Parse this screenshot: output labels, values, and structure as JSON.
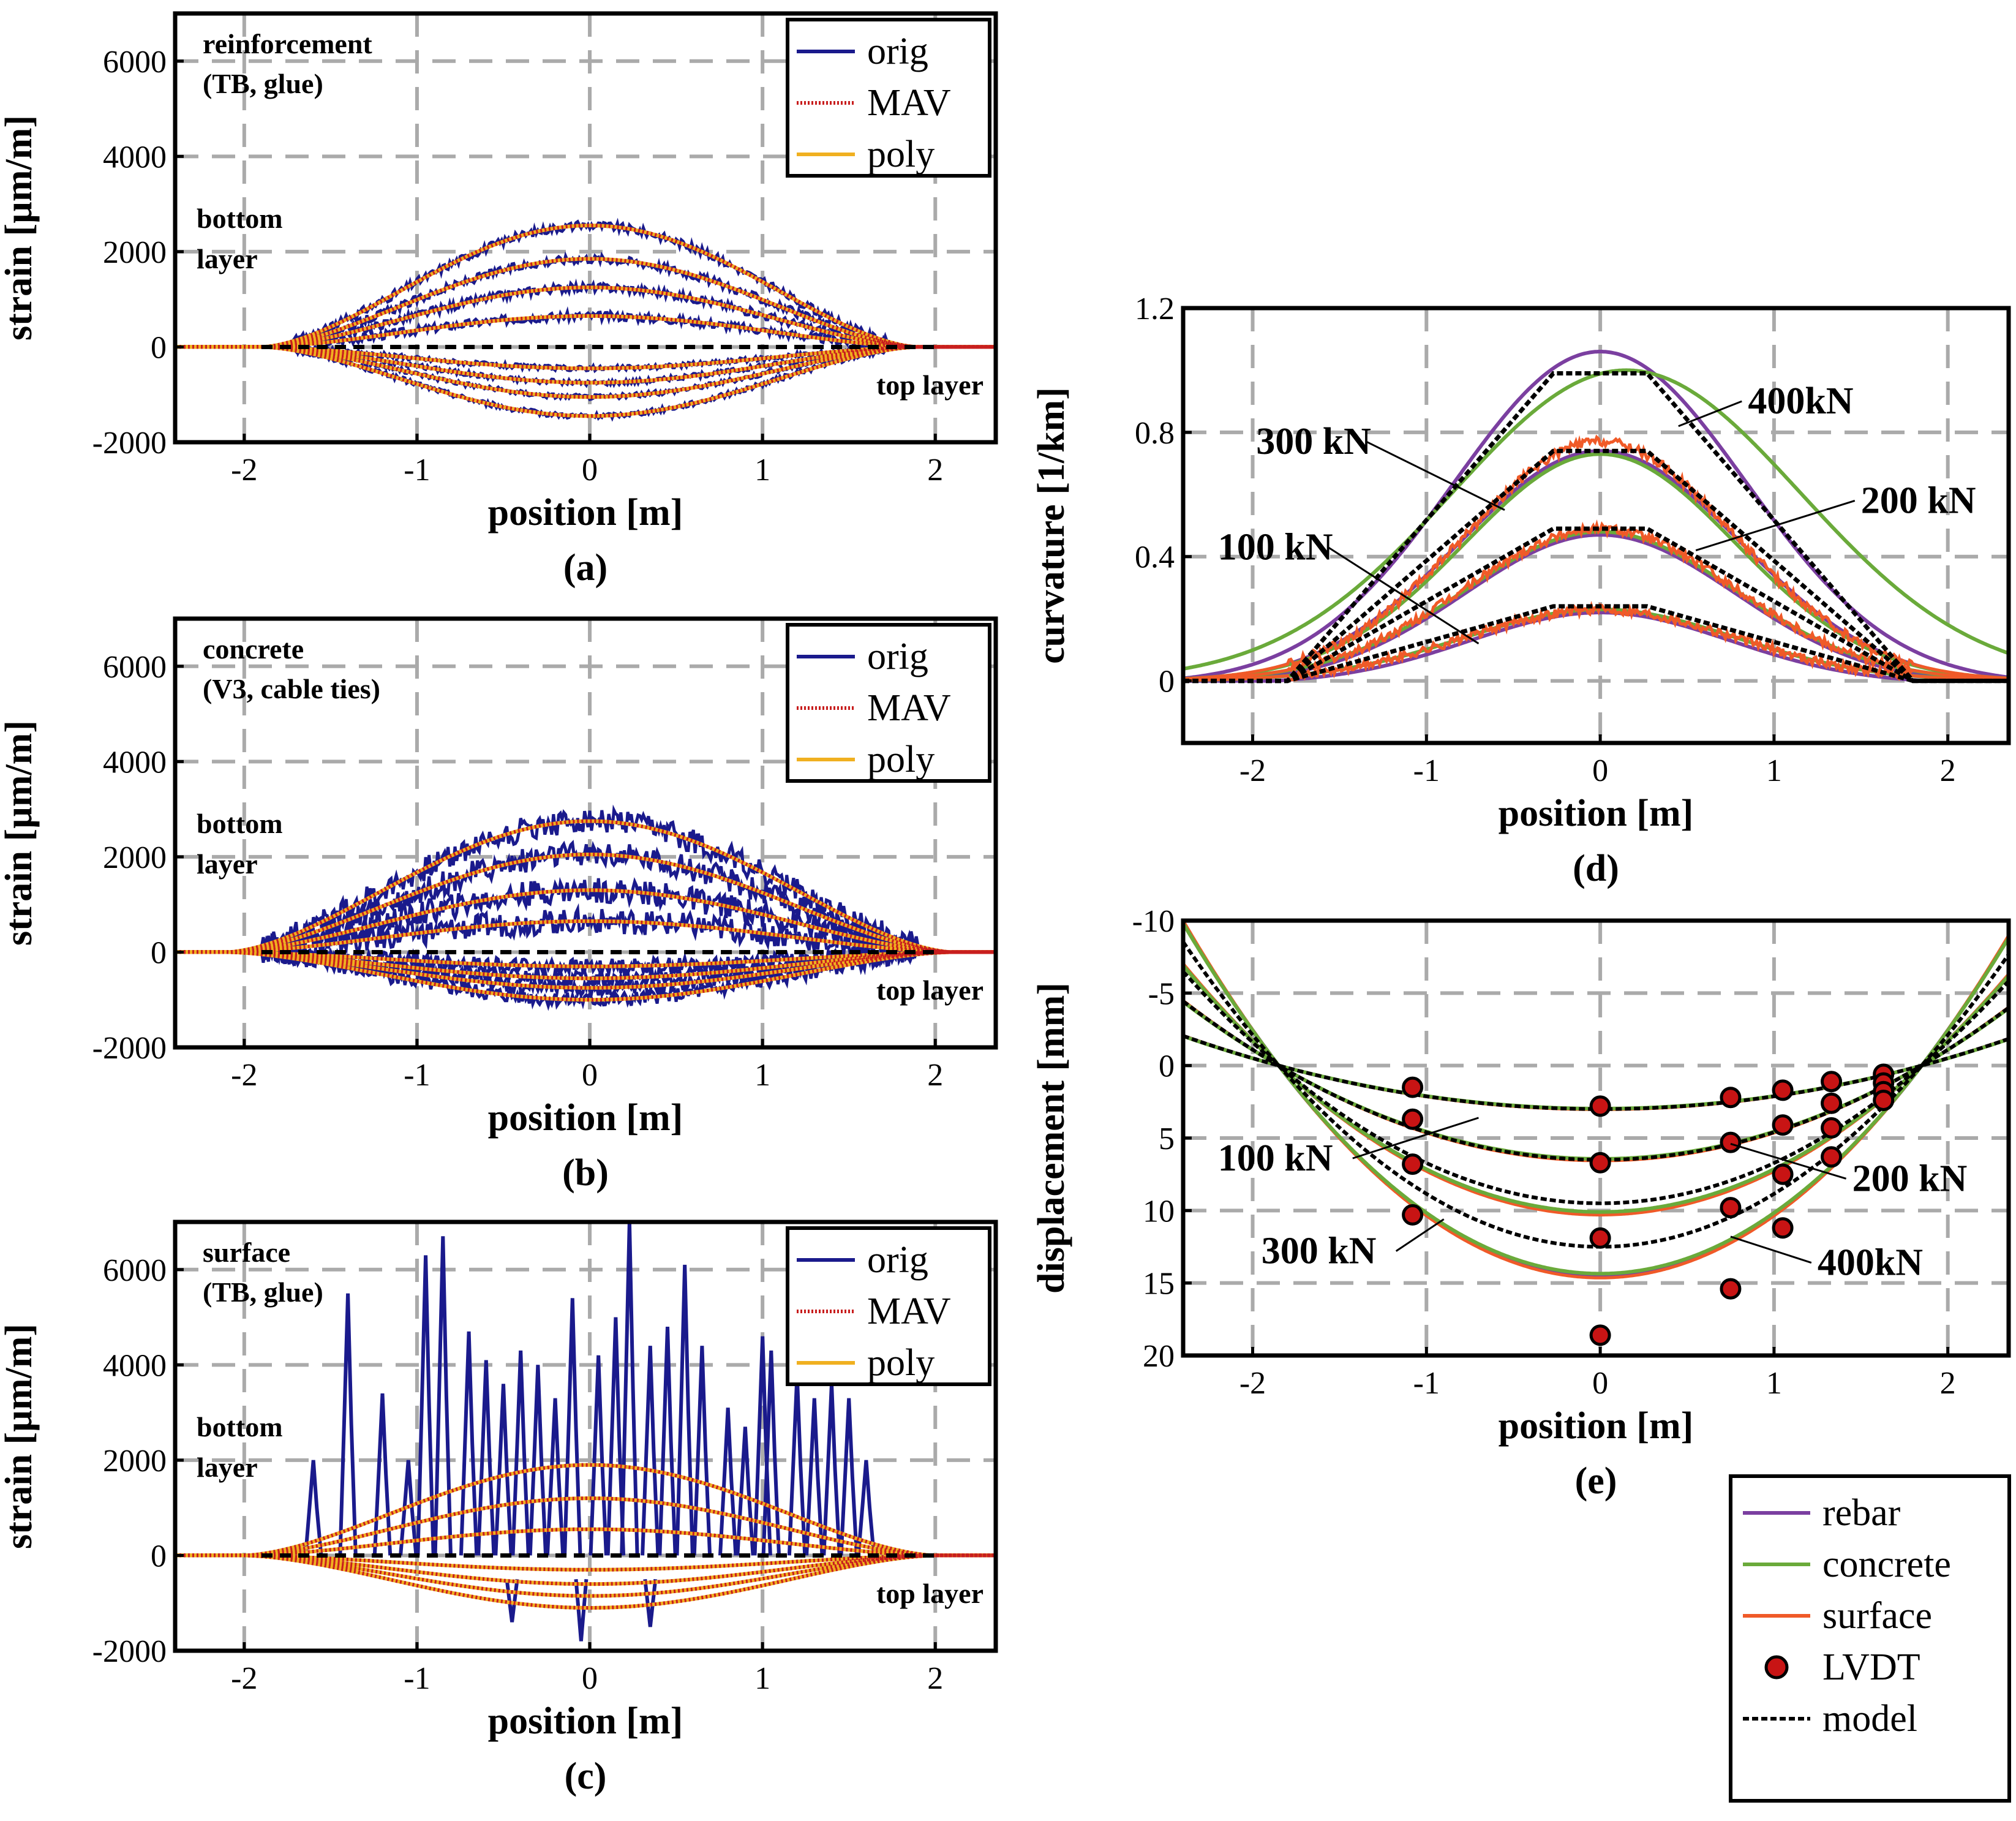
{
  "figure": {
    "legend_strain": {
      "orig": "orig",
      "mav": "MAV",
      "poly": "poly"
    },
    "legend_global": {
      "rebar": "rebar",
      "concrete": "concrete",
      "surface": "surface",
      "lvdt": "LVDT",
      "model": "model"
    },
    "colors": {
      "orig": "#1a1a8c",
      "mav": "#c81e1e",
      "poly": "#f0b020",
      "rebar": "#7b3fa0",
      "concrete": "#6aaa3a",
      "surface": "#f05a28",
      "lvdt_fill": "#c81414",
      "model": "#000000"
    }
  },
  "chart_data": [
    {
      "id": "a",
      "type": "line",
      "caption": "(a)",
      "title_lines": [
        "reinforcement",
        "(TB, glue)"
      ],
      "annotations": {
        "bottom": [
          "bottom",
          "layer"
        ],
        "top": "top layer"
      },
      "xlabel": "position [m]",
      "ylabel": "strain [µm/m]",
      "xlim": [
        -2.4,
        2.35
      ],
      "ylim": [
        -2000,
        7000
      ],
      "xticks": [
        -2,
        -1,
        0,
        1,
        2
      ],
      "xtick_labels": [
        "-2",
        "-1",
        "0",
        "1",
        "2"
      ],
      "yticks": [
        -2000,
        0,
        2000,
        4000,
        6000
      ],
      "ytick_labels": [
        "-2000",
        "0",
        "2000",
        "4000",
        "6000"
      ],
      "support": 1.9,
      "load_levels_peak_bottom": [
        650,
        1250,
        1850,
        2550
      ],
      "load_levels_peak_top": [
        -450,
        -750,
        -1050,
        -1450
      ],
      "noise": 90
    },
    {
      "id": "b",
      "type": "line",
      "caption": "(b)",
      "title_lines": [
        "concrete",
        "(V3, cable ties)"
      ],
      "annotations": {
        "bottom": [
          "bottom",
          "layer"
        ],
        "top": "top layer"
      },
      "xlabel": "position [m]",
      "ylabel": "strain [µm/m]",
      "xlim": [
        -2.4,
        2.35
      ],
      "ylim": [
        -2000,
        7000
      ],
      "xticks": [
        -2,
        -1,
        0,
        1,
        2
      ],
      "xtick_labels": [
        "-2",
        "-1",
        "0",
        "1",
        "2"
      ],
      "yticks": [
        -2000,
        0,
        2000,
        4000,
        6000
      ],
      "ytick_labels": [
        "-2000",
        "0",
        "2000",
        "4000",
        "6000"
      ],
      "support": 2.1,
      "load_levels_peak_bottom": [
        650,
        1300,
        2050,
        2750
      ],
      "load_levels_peak_top": [
        -300,
        -550,
        -750,
        -1000
      ],
      "noise": 260
    },
    {
      "id": "c",
      "type": "line",
      "caption": "(c)",
      "title_lines": [
        "surface",
        "(TB, glue)"
      ],
      "annotations": {
        "bottom": [
          "bottom",
          "layer"
        ],
        "top": "top layer"
      },
      "xlabel": "position [m]",
      "ylabel": "strain [µm/m]",
      "xlim": [
        -2.4,
        2.35
      ],
      "ylim": [
        -2000,
        7000
      ],
      "xticks": [
        -2,
        -1,
        0,
        1,
        2
      ],
      "xtick_labels": [
        "-2",
        "-1",
        "0",
        "1",
        "2"
      ],
      "yticks": [
        -2000,
        0,
        2000,
        4000,
        6000
      ],
      "ytick_labels": [
        "-2000",
        "0",
        "2000",
        "4000",
        "6000"
      ],
      "support": 2.0,
      "load_levels_peak_bottom": [
        550,
        1200,
        1900
      ],
      "load_levels_peak_top": [
        -300,
        -600,
        -850,
        -1100
      ],
      "spike_positions": [
        -1.6,
        -1.4,
        -1.2,
        -1.05,
        -0.95,
        -0.85,
        -0.7,
        -0.6,
        -0.5,
        -0.4,
        -0.3,
        -0.2,
        -0.1,
        0.05,
        0.15,
        0.23,
        0.35,
        0.45,
        0.55,
        0.65,
        0.8,
        0.9,
        1.0,
        1.05,
        1.2,
        1.3,
        1.4,
        1.5,
        1.6
      ],
      "spike_heights": [
        2000,
        5500,
        3400,
        2000,
        6300,
        6700,
        4700,
        4100,
        3600,
        4300,
        4000,
        3300,
        5400,
        4200,
        5000,
        7000,
        4400,
        4800,
        6100,
        4400,
        3100,
        2700,
        4600,
        4300,
        3800,
        3300,
        3600,
        3300,
        2000
      ]
    },
    {
      "id": "d",
      "type": "line",
      "caption": "(d)",
      "xlabel": "position [m]",
      "ylabel": "curvature [1/km]",
      "xlim": [
        -2.4,
        2.35
      ],
      "ylim": [
        -0.2,
        1.2
      ],
      "xticks": [
        -2,
        -1,
        0,
        1,
        2
      ],
      "xtick_labels": [
        "-2",
        "-1",
        "0",
        "1",
        "2"
      ],
      "yticks": [
        0,
        0.4,
        0.8,
        1.2
      ],
      "ytick_labels": [
        "0",
        "0.4",
        "0.8",
        "1.2"
      ],
      "model_support": 1.8,
      "model_plateau": 0.27,
      "load_labels": [
        "100 kN",
        "200 kN",
        "300 kN",
        "400kN"
      ],
      "model_peaks": [
        0.24,
        0.49,
        0.74,
        0.99
      ],
      "rebar_peaks": [
        0.23,
        0.48,
        0.75,
        1.07
      ],
      "concrete_peaks": [
        0.23,
        0.48,
        0.73,
        1.0
      ],
      "surface_peaks": [
        0.23,
        0.49,
        0.77
      ]
    },
    {
      "id": "e",
      "type": "line",
      "caption": "(e)",
      "xlabel": "position [m]",
      "ylabel": "displacement [mm]",
      "xlim": [
        -2.4,
        2.35
      ],
      "ylim": [
        20,
        -10
      ],
      "y_inverted": true,
      "xticks": [
        -2,
        -1,
        0,
        1,
        2
      ],
      "xtick_labels": [
        "-2",
        "-1",
        "0",
        "1",
        "2"
      ],
      "yticks": [
        -10,
        -5,
        0,
        5,
        10,
        15,
        20
      ],
      "ytick_labels": [
        "-10",
        "-5",
        "0",
        "5",
        "10",
        "15",
        "20"
      ],
      "support": 1.85,
      "load_labels": [
        "100 kN",
        "200 kN",
        "300 kN",
        "400kN"
      ],
      "model_midspan": [
        3.0,
        6.5,
        9.5,
        12.5
      ],
      "meas_midspan": [
        3.0,
        6.5,
        10.2,
        14.5
      ],
      "lvdt": {
        "x": [
          -1.08,
          -1.08,
          -1.08,
          -1.08,
          0,
          0,
          0,
          0,
          0.75,
          0.75,
          0.75,
          0.75,
          1.05,
          1.05,
          1.05,
          1.05,
          1.33,
          1.33,
          1.33,
          1.33,
          1.63,
          1.63,
          1.63,
          1.63
        ],
        "y": [
          1.5,
          3.7,
          6.8,
          10.3,
          2.8,
          6.7,
          11.9,
          18.6,
          2.2,
          5.3,
          9.8,
          15.4,
          1.7,
          4.1,
          7.5,
          11.2,
          1.1,
          2.6,
          4.3,
          6.3,
          0.6,
          1.2,
          1.8,
          2.4
        ]
      }
    }
  ]
}
